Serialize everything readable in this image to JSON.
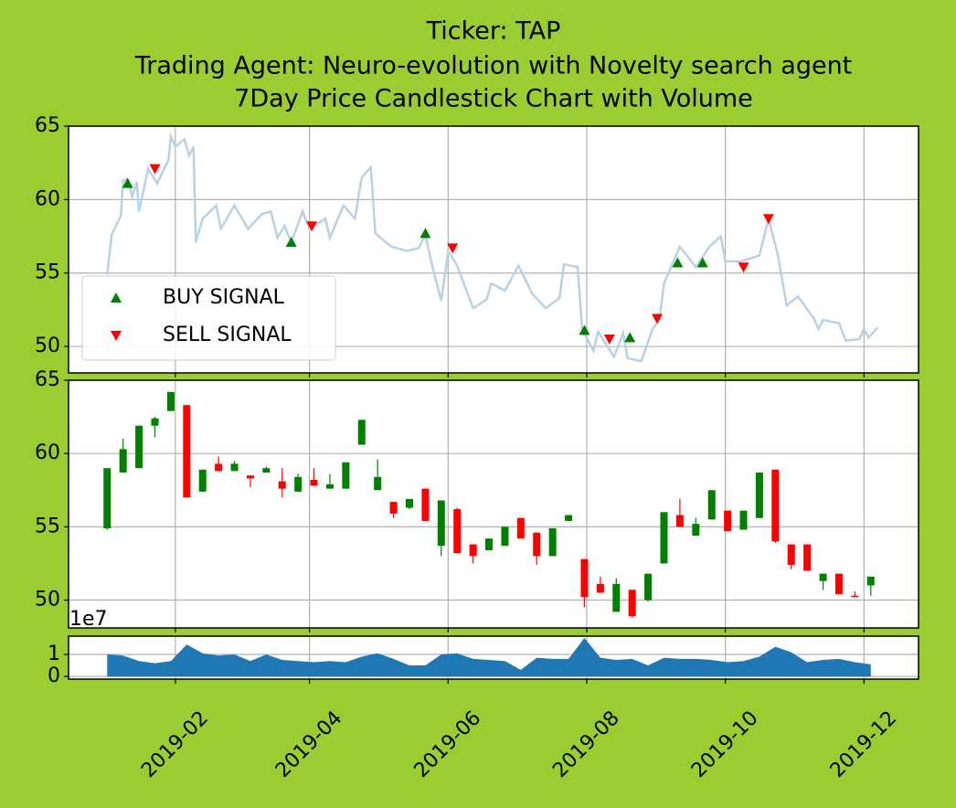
{
  "chart_data": [
    {
      "type": "line",
      "title": [
        "Ticker: TAP",
        "Trading Agent: Neuro-evolution with Novelty search agent",
        "7Day Price Candlestick Chart with Volume"
      ],
      "color": "#b7d1e6",
      "x": [
        "2019-01-02",
        "2019-01-04",
        "2019-01-08",
        "2019-01-09",
        "2019-01-11",
        "2019-01-13",
        "2019-01-15",
        "2019-01-16",
        "2019-01-20",
        "2019-01-24",
        "2019-01-29",
        "2019-01-30",
        "2019-02-01",
        "2019-02-05",
        "2019-02-07",
        "2019-02-09",
        "2019-02-10",
        "2019-02-13",
        "2019-02-19",
        "2019-02-21",
        "2019-02-27",
        "2019-03-05",
        "2019-03-11",
        "2019-03-15",
        "2019-03-18",
        "2019-03-21",
        "2019-03-24",
        "2019-03-29",
        "2019-04-01",
        "2019-04-08",
        "2019-04-10",
        "2019-04-16",
        "2019-04-21",
        "2019-04-24",
        "2019-04-28",
        "2019-04-30",
        "2019-05-07",
        "2019-05-14",
        "2019-05-19",
        "2019-05-22",
        "2019-05-25",
        "2019-05-29",
        "2019-06-01",
        "2019-06-05",
        "2019-06-12",
        "2019-06-18",
        "2019-06-20",
        "2019-06-26",
        "2019-07-02",
        "2019-07-08",
        "2019-07-14",
        "2019-07-20",
        "2019-07-22",
        "2019-07-28",
        "2019-07-30",
        "2019-08-04",
        "2019-08-06",
        "2019-08-13",
        "2019-08-17",
        "2019-08-19",
        "2019-08-25",
        "2019-08-30",
        "2019-09-02",
        "2019-09-04",
        "2019-09-11",
        "2019-09-18",
        "2019-09-24",
        "2019-09-29",
        "2019-10-01",
        "2019-10-08",
        "2019-10-16",
        "2019-10-20",
        "2019-10-24",
        "2019-10-28",
        "2019-11-02",
        "2019-11-09",
        "2019-11-11",
        "2019-11-13",
        "2019-11-20",
        "2019-11-23",
        "2019-11-29",
        "2019-12-01",
        "2019-12-03",
        "2019-12-07"
      ],
      "values": [
        54.9,
        57.6,
        58.9,
        61.3,
        61.4,
        60.2,
        61.2,
        59.2,
        62.1,
        61.1,
        62.7,
        64.3,
        63.6,
        64.1,
        63.0,
        63.6,
        57.1,
        58.7,
        59.6,
        58.0,
        59.6,
        58.0,
        59.0,
        59.2,
        57.4,
        58.2,
        57.1,
        59.2,
        58.0,
        58.7,
        57.4,
        59.6,
        58.7,
        61.5,
        62.2,
        57.7,
        56.8,
        56.5,
        56.7,
        57.6,
        55.5,
        53.1,
        56.5,
        55.5,
        52.6,
        53.2,
        54.3,
        53.8,
        55.5,
        53.6,
        52.6,
        53.3,
        55.6,
        55.4,
        51.2,
        49.7,
        51.0,
        49.3,
        50.9,
        49.2,
        49.0,
        51.2,
        51.8,
        54.3,
        56.8,
        55.4,
        56.8,
        57.5,
        55.8,
        55.8,
        56.2,
        58.7,
        56.3,
        52.8,
        53.4,
        51.9,
        51.2,
        51.8,
        51.6,
        50.4,
        50.5,
        51.2,
        50.6,
        51.3
      ],
      "signals": [
        {
          "name": "BUY SIGNAL",
          "color": "green",
          "marker": "triangle-up",
          "x": [
            "2019-01-11",
            "2019-03-24",
            "2019-05-22",
            "2019-07-31",
            "2019-08-20",
            "2019-09-10",
            "2019-09-21"
          ],
          "values": [
            61.1,
            57.1,
            57.7,
            51.1,
            50.6,
            55.7,
            55.7
          ]
        },
        {
          "name": "SELL SIGNAL",
          "color": "red",
          "marker": "triangle-down",
          "x": [
            "2019-01-23",
            "2019-04-02",
            "2019-06-03",
            "2019-08-11",
            "2019-09-01",
            "2019-10-09",
            "2019-10-20"
          ],
          "values": [
            62.1,
            58.2,
            56.7,
            50.5,
            51.9,
            55.4,
            58.7
          ]
        }
      ],
      "ylim": [
        48.2,
        65
      ],
      "yticks": [
        50,
        55,
        60,
        65
      ],
      "grid": true,
      "legend": "lower left"
    },
    {
      "type": "candlestick",
      "up_color": "green",
      "down_color": "red",
      "x": [
        "2019-01-02",
        "2019-01-09",
        "2019-01-16",
        "2019-01-23",
        "2019-01-30",
        "2019-02-06",
        "2019-02-13",
        "2019-02-20",
        "2019-02-27",
        "2019-03-06",
        "2019-03-13",
        "2019-03-20",
        "2019-03-27",
        "2019-04-03",
        "2019-04-10",
        "2019-04-17",
        "2019-04-24",
        "2019-05-01",
        "2019-05-08",
        "2019-05-15",
        "2019-05-22",
        "2019-05-29",
        "2019-06-05",
        "2019-06-12",
        "2019-06-19",
        "2019-06-26",
        "2019-07-03",
        "2019-07-10",
        "2019-07-17",
        "2019-07-24",
        "2019-07-31",
        "2019-08-07",
        "2019-08-14",
        "2019-08-21",
        "2019-08-28",
        "2019-09-04",
        "2019-09-11",
        "2019-09-18",
        "2019-09-25",
        "2019-10-02",
        "2019-10-09",
        "2019-10-16",
        "2019-10-23",
        "2019-10-30",
        "2019-11-06",
        "2019-11-13",
        "2019-11-20",
        "2019-11-27",
        "2019-12-04"
      ],
      "open": [
        54.9,
        58.7,
        59.0,
        61.9,
        62.9,
        63.3,
        57.4,
        59.3,
        58.8,
        58.5,
        58.7,
        58.1,
        57.4,
        58.2,
        57.6,
        57.6,
        60.6,
        57.5,
        56.7,
        56.3,
        57.6,
        53.7,
        56.2,
        53.8,
        53.4,
        53.7,
        55.6,
        54.6,
        53.0,
        55.4,
        52.8,
        51.1,
        49.2,
        50.7,
        50.0,
        52.5,
        55.8,
        54.4,
        55.5,
        56.1,
        54.8,
        55.6,
        58.9,
        53.8,
        53.8,
        51.3,
        51.8,
        50.3,
        51.0
      ],
      "close": [
        59.0,
        60.3,
        61.9,
        62.4,
        64.2,
        57.0,
        58.9,
        58.8,
        59.3,
        58.3,
        59.0,
        57.6,
        58.4,
        57.8,
        57.9,
        59.4,
        62.3,
        58.4,
        55.9,
        56.9,
        55.4,
        56.8,
        53.2,
        53.0,
        54.2,
        55.0,
        54.2,
        53.0,
        54.9,
        55.8,
        50.2,
        50.5,
        51.1,
        48.9,
        51.8,
        56.0,
        55.0,
        55.2,
        57.5,
        54.7,
        56.1,
        58.7,
        54.0,
        52.4,
        52.0,
        51.8,
        50.4,
        50.2,
        51.6
      ],
      "high": [
        59.0,
        61.0,
        61.9,
        62.5,
        64.2,
        63.3,
        58.9,
        59.8,
        59.5,
        58.5,
        59.1,
        59.0,
        58.6,
        59.0,
        58.6,
        59.4,
        62.3,
        59.6,
        56.7,
        56.9,
        57.6,
        56.8,
        56.3,
        53.8,
        54.2,
        55.0,
        55.6,
        54.6,
        54.9,
        55.8,
        52.8,
        51.6,
        51.5,
        50.7,
        51.8,
        56.0,
        56.9,
        55.6,
        57.5,
        56.1,
        56.1,
        58.7,
        58.9,
        53.8,
        53.8,
        51.8,
        51.8,
        50.6,
        51.6
      ],
      "low": [
        54.8,
        58.7,
        59.0,
        61.1,
        62.9,
        57.0,
        57.4,
        58.8,
        58.8,
        57.7,
        58.7,
        57.0,
        57.4,
        57.8,
        57.6,
        57.6,
        60.6,
        57.5,
        55.6,
        56.2,
        55.4,
        53.0,
        53.2,
        52.5,
        53.4,
        53.7,
        54.2,
        52.4,
        53.0,
        55.4,
        49.5,
        50.5,
        49.2,
        48.8,
        49.9,
        52.5,
        55.0,
        54.4,
        55.5,
        54.7,
        54.8,
        55.6,
        53.9,
        52.1,
        52.0,
        50.7,
        50.4,
        50.2,
        50.3
      ],
      "ylim": [
        48.1,
        65
      ],
      "yticks": [
        50,
        55,
        60,
        65
      ],
      "grid": true
    },
    {
      "type": "area",
      "color": "#1f77b4",
      "offset_label": "1e7",
      "x": [
        "2019-01-02",
        "2019-01-09",
        "2019-01-16",
        "2019-01-23",
        "2019-01-30",
        "2019-02-06",
        "2019-02-13",
        "2019-02-20",
        "2019-02-27",
        "2019-03-06",
        "2019-03-13",
        "2019-03-20",
        "2019-03-27",
        "2019-04-03",
        "2019-04-10",
        "2019-04-17",
        "2019-04-24",
        "2019-05-01",
        "2019-05-08",
        "2019-05-15",
        "2019-05-22",
        "2019-05-29",
        "2019-06-05",
        "2019-06-12",
        "2019-06-19",
        "2019-06-26",
        "2019-07-03",
        "2019-07-10",
        "2019-07-17",
        "2019-07-24",
        "2019-07-31",
        "2019-08-07",
        "2019-08-14",
        "2019-08-21",
        "2019-08-28",
        "2019-09-04",
        "2019-09-11",
        "2019-09-18",
        "2019-09-25",
        "2019-10-02",
        "2019-10-09",
        "2019-10-16",
        "2019-10-23",
        "2019-10-30",
        "2019-11-06",
        "2019-11-13",
        "2019-11-20",
        "2019-11-27",
        "2019-12-04"
      ],
      "values": [
        1.0,
        0.95,
        0.7,
        0.6,
        0.7,
        1.45,
        1.05,
        0.95,
        1.0,
        0.7,
        1.0,
        0.75,
        0.7,
        0.65,
        0.7,
        0.65,
        0.9,
        1.05,
        0.8,
        0.5,
        0.5,
        1.0,
        1.05,
        0.8,
        0.75,
        0.7,
        0.3,
        0.85,
        0.8,
        0.8,
        1.75,
        0.85,
        0.75,
        0.8,
        0.5,
        0.85,
        0.8,
        0.8,
        0.75,
        0.65,
        0.7,
        0.9,
        1.35,
        1.1,
        0.65,
        0.75,
        0.8,
        0.65,
        0.55
      ],
      "ylim": [
        -0.12,
        1.83
      ],
      "yticks": [
        0,
        1
      ],
      "grid": true,
      "xlim": [
        "2018-12-16",
        "2019-12-25"
      ],
      "xticks": [
        {
          "value": "2019-02-01",
          "label": "2019-02"
        },
        {
          "value": "2019-04-01",
          "label": "2019-04"
        },
        {
          "value": "2019-06-01",
          "label": "2019-06"
        },
        {
          "value": "2019-08-01",
          "label": "2019-08"
        },
        {
          "value": "2019-10-01",
          "label": "2019-10"
        },
        {
          "value": "2019-12-01",
          "label": "2019-12"
        }
      ]
    }
  ]
}
